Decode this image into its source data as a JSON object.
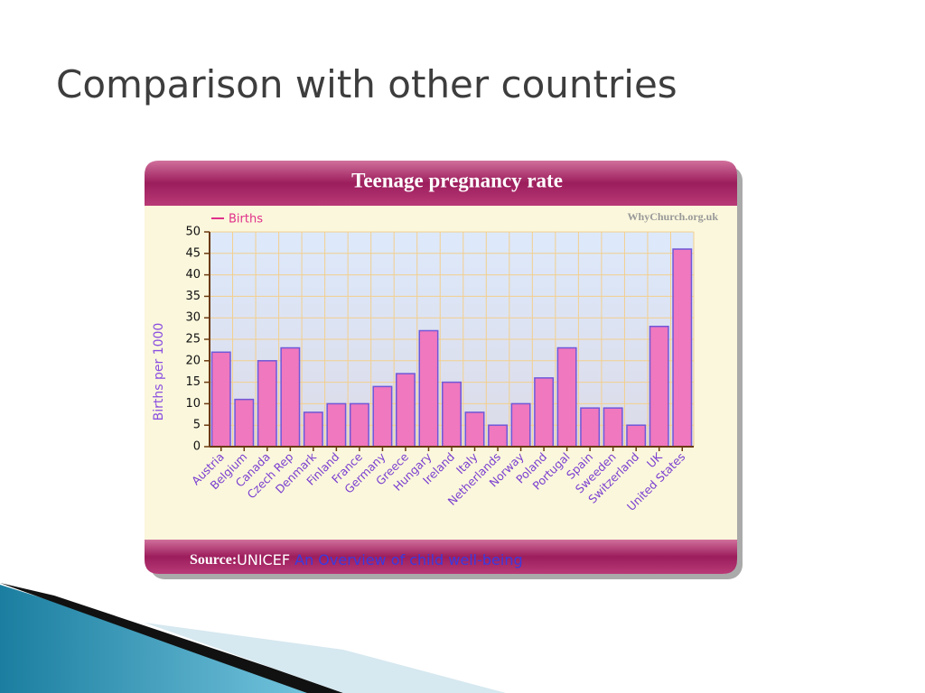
{
  "title": "Comparison with other countries",
  "chart_data": {
    "type": "bar",
    "title": "Teenage pregnancy rate",
    "watermark": "WhyChurch.org.uk",
    "y_label": "Births per 1000",
    "categories": [
      "Austria",
      "Belgium",
      "Canada",
      "Czech Rep",
      "Denmark",
      "Finland",
      "France",
      "Germany",
      "Greece",
      "Hungary",
      "Ireland",
      "Italy",
      "Netherlands",
      "Norway",
      "Poland",
      "Portugal",
      "Spain",
      "Sweeden",
      "Switzerland",
      "UK",
      "United States"
    ],
    "series": [
      {
        "name": "Births",
        "color": "#ef78be",
        "values": [
          22,
          11,
          20,
          23,
          8,
          10,
          10,
          14,
          17,
          27,
          15,
          8,
          5,
          10,
          16,
          23,
          9,
          9,
          5,
          28,
          46
        ]
      }
    ],
    "ylim": [
      0,
      50
    ],
    "yticks": [
      0,
      5,
      10,
      15,
      20,
      25,
      30,
      35,
      40,
      45,
      50
    ],
    "grid": true,
    "source_label": "Source:",
    "source": "UNICEF",
    "source_link": "An Overview of child well-being"
  }
}
